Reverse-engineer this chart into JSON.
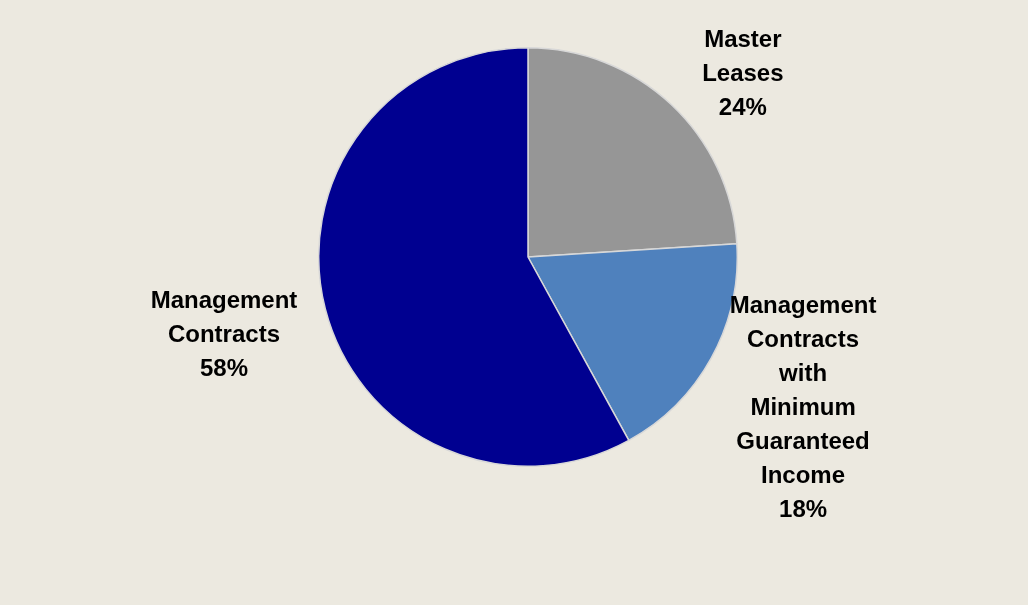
{
  "chart_data": {
    "type": "pie",
    "categories": [
      "Master Leases",
      "Management Contracts with Minimum Guaranteed Income",
      "Management Contracts"
    ],
    "values": [
      24,
      18,
      58
    ],
    "colors": [
      "#969696",
      "#4f81bd",
      "#000090"
    ],
    "value_labels": [
      "24%",
      "18%",
      "58%"
    ],
    "legend": false
  }
}
